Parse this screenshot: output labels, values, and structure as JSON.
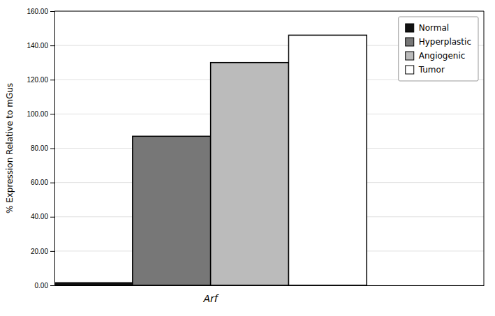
{
  "chart_data": {
    "type": "bar",
    "categories": [
      "Normal",
      "Hyperplastic",
      "Angiogenic",
      "Tumor"
    ],
    "values": [
      1.5,
      87.0,
      130.0,
      146.0
    ],
    "colors": [
      "#111111",
      "#777777",
      "#bbbbbb",
      "#ffffff"
    ],
    "x_label": "Arf",
    "y_label": "% Expression Relative to mGus",
    "ylim": [
      0,
      160.0
    ],
    "yticks": [
      {
        "value": 0,
        "label": "0.00"
      },
      {
        "value": 20,
        "label": "20.00"
      },
      {
        "value": 40,
        "label": "40.00"
      },
      {
        "value": 60,
        "label": "60.00"
      },
      {
        "value": 80,
        "label": "80.00"
      },
      {
        "value": 100,
        "label": "100.00"
      },
      {
        "value": 120,
        "label": "120.00"
      },
      {
        "value": 140,
        "label": "140.00"
      },
      {
        "value": 160,
        "label": "160.00"
      }
    ],
    "grid": true,
    "legend": "upper right"
  }
}
